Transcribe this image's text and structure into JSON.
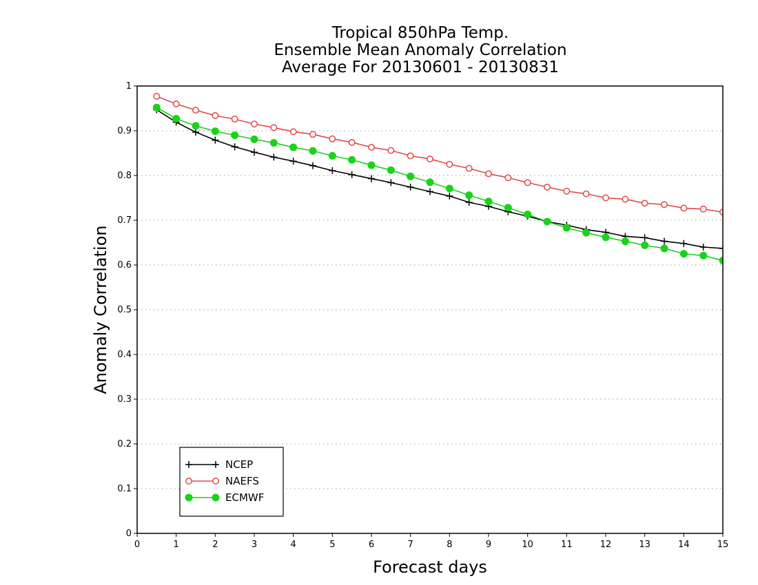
{
  "chart_data": {
    "type": "line",
    "title_lines": [
      "Tropical 850hPa Temp.",
      "Ensemble Mean Anomaly Correlation",
      "Average For 20130601 - 20130831"
    ],
    "xlabel": "Forecast days",
    "ylabel": "Anomaly Correlation",
    "xlim": [
      0,
      15
    ],
    "ylim": [
      0,
      1
    ],
    "xticks": [
      0,
      1,
      2,
      3,
      4,
      5,
      6,
      7,
      8,
      9,
      10,
      11,
      12,
      13,
      14,
      15
    ],
    "yticks": [
      0,
      0.1,
      0.2,
      0.3,
      0.4,
      0.5,
      0.6,
      0.7,
      0.8,
      0.9,
      1
    ],
    "ytick_labels": [
      "0",
      "0.1",
      "0.2",
      "0.3",
      "0.4",
      "0.5",
      "0.6",
      "0.7",
      "0.8",
      "0.9",
      "1"
    ],
    "grid": "horizontal dotted",
    "legend_position": "bottom-left",
    "x": [
      0.5,
      1,
      1.5,
      2,
      2.5,
      3,
      3.5,
      4,
      4.5,
      5,
      5.5,
      6,
      6.5,
      7,
      7.5,
      8,
      8.5,
      9,
      9.5,
      10,
      10.5,
      11,
      11.5,
      12,
      12.5,
      13,
      13.5,
      14,
      14.5,
      15
    ],
    "series": [
      {
        "name": "NCEP",
        "color": "#000000",
        "marker": "plus",
        "values": [
          0.947,
          0.919,
          0.897,
          0.879,
          0.864,
          0.852,
          0.841,
          0.832,
          0.822,
          0.811,
          0.802,
          0.793,
          0.784,
          0.774,
          0.764,
          0.754,
          0.74,
          0.731,
          0.719,
          0.709,
          0.697,
          0.689,
          0.679,
          0.673,
          0.664,
          0.661,
          0.653,
          0.648,
          0.64,
          0.637
        ]
      },
      {
        "name": "NAEFS",
        "color": "#e04848",
        "marker": "open-circle",
        "values": [
          0.977,
          0.96,
          0.946,
          0.934,
          0.926,
          0.915,
          0.907,
          0.898,
          0.892,
          0.882,
          0.874,
          0.863,
          0.856,
          0.844,
          0.837,
          0.825,
          0.816,
          0.804,
          0.795,
          0.784,
          0.774,
          0.765,
          0.759,
          0.75,
          0.747,
          0.738,
          0.735,
          0.727,
          0.725,
          0.718
        ]
      },
      {
        "name": "ECMWF",
        "color": "#19d219",
        "marker": "filled-circle",
        "values": [
          0.952,
          0.927,
          0.911,
          0.899,
          0.89,
          0.881,
          0.873,
          0.863,
          0.855,
          0.844,
          0.835,
          0.823,
          0.812,
          0.798,
          0.785,
          0.771,
          0.756,
          0.742,
          0.728,
          0.713,
          0.697,
          0.683,
          0.672,
          0.662,
          0.653,
          0.644,
          0.637,
          0.625,
          0.621,
          0.61
        ]
      }
    ]
  }
}
